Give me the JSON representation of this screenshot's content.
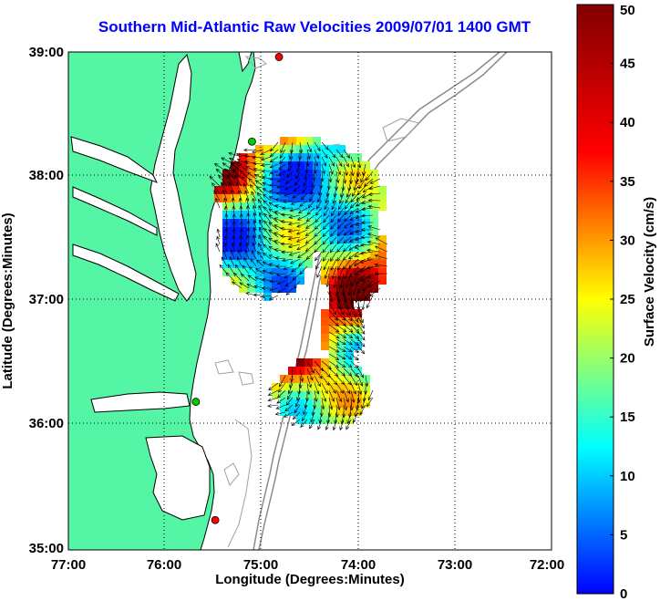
{
  "title": "Southern Mid-Atlantic Raw Velocities 2009/07/01 1400 GMT",
  "map": {
    "xlabel": "Longitude (Degrees:Minutes)",
    "ylabel": "Latitude (Degrees:Minutes)",
    "lon_range": [
      -77,
      -72
    ],
    "lat_range": [
      35,
      39
    ],
    "x_ticks": [
      "77:00",
      "76:00",
      "75:00",
      "74:00",
      "73:00",
      "72:00"
    ],
    "y_ticks": [
      "39:00",
      "38:00",
      "37:00",
      "36:00",
      "35:00"
    ],
    "land_color": "#55f5a6",
    "grid": "dotted",
    "stations": [
      {
        "lon": -74.82,
        "lat": 38.96,
        "color": "#ff0000"
      },
      {
        "lon": -75.1,
        "lat": 38.28,
        "color": "#00cc00"
      },
      {
        "lon": -75.68,
        "lat": 36.19,
        "color": "#00cc00"
      },
      {
        "lon": -75.48,
        "lat": 35.24,
        "color": "#ff0000"
      }
    ]
  },
  "colorbar": {
    "label": "Surface Velocity (cm/s)",
    "ticks": [
      "50",
      "45",
      "40",
      "35",
      "30",
      "25",
      "20",
      "15",
      "10",
      "5",
      "0"
    ],
    "min": 0,
    "max": 50
  }
}
